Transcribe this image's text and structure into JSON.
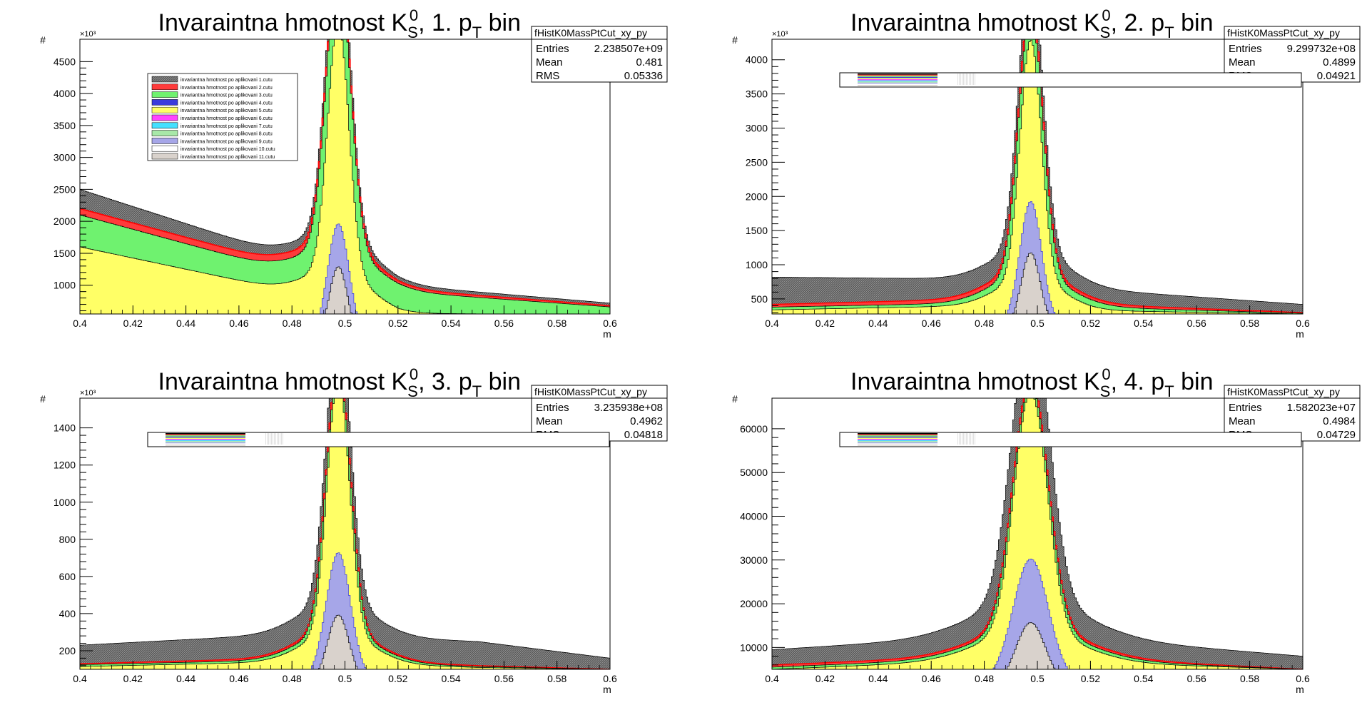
{
  "window": {
    "title": ""
  },
  "colors": {
    "cut1": "#6b6b6b",
    "cut2": "#ff3b3b",
    "cut3": "#6ff26f",
    "cut4": "#3a3adb",
    "cut5": "#ffff66",
    "cut6": "#ff44ff",
    "cut7": "#44e0ff",
    "cut8": "#a8e8a8",
    "cut9": "#a6a6e8",
    "cut10": "#ffffff",
    "cut11": "#d9d2cc"
  },
  "chart_data": [
    {
      "type": "area",
      "title_main": "Invaraintna hmotnost K",
      "title_sub": "S",
      "title_sup": "0",
      "title_rest": ", 1. p",
      "title_pt_sub": "T",
      "title_tail": " bin",
      "xlabel": "m",
      "ylabel": "#",
      "y_multiplier": "×10³",
      "xlim": [
        0.4,
        0.6
      ],
      "ylim": [
        550,
        4850
      ],
      "yticks": [
        "1000",
        "1500",
        "2000",
        "2500",
        "3000",
        "3500",
        "4000",
        "4500"
      ],
      "ytick_values": [
        1000,
        1500,
        2000,
        2500,
        3000,
        3500,
        4000,
        4500
      ],
      "xticks": [
        "0.4",
        "0.42",
        "0.44",
        "0.46",
        "0.48",
        "0.5",
        "0.52",
        "0.54",
        "0.56",
        "0.58",
        "0.6"
      ],
      "stats": {
        "name": "fHistK0MassPtCut_xy_py",
        "entries_label": "Entries",
        "entries": "2.238507e+09",
        "mean_label": "Mean",
        "mean": "0.481",
        "rms_label": "RMS",
        "rms": "0.05336"
      },
      "legend_entries": [
        "invariantna hmotnost po aplikovani 1.cutu",
        "invariantna hmotnost po aplikovani 2.cutu",
        "invariantna hmotnost po aplikovani 3.cutu",
        "invariantna hmotnost po aplikovani 4.cutu",
        "invariantna hmotnost po aplikovani 5.cutu",
        "invariantna hmotnost po aplikovani 6.cutu",
        "invariantna hmotnost po aplikovani 7.cutu",
        "invariantna hmotnost po aplikovani 8.cutu",
        "invariantna hmotnost po aplikovani 9.cutu",
        "invariantna hmotnost po aplikovani 10.cutu",
        "invariantna hmotnost po aplikovani 11.cutu"
      ],
      "series": [
        {
          "name": "invariantna hmotnost po aplikovani 1.cutu",
          "color": "#6b6b6b",
          "peak_x": 0.4975,
          "peak_y": 4700,
          "sigma": 0.0045,
          "bg": [
            [
              0.4,
              2500
            ],
            [
              0.48,
              1430
            ],
            [
              0.52,
              1000
            ],
            [
              0.6,
              720
            ]
          ]
        },
        {
          "name": "invariantna hmotnost po aplikovani 2.cutu",
          "color": "#ff3b3b",
          "peak_x": 0.4975,
          "peak_y": 4480,
          "sigma": 0.0045,
          "bg": [
            [
              0.4,
              2200
            ],
            [
              0.48,
              1300
            ],
            [
              0.52,
              940
            ],
            [
              0.6,
              680
            ]
          ]
        },
        {
          "name": "invariantna hmotnost po aplikovani 3.cutu",
          "color": "#6ff26f",
          "peak_x": 0.4975,
          "peak_y": 4400,
          "sigma": 0.0045,
          "bg": [
            [
              0.4,
              2100
            ],
            [
              0.48,
              1200
            ],
            [
              0.52,
              900
            ],
            [
              0.6,
              660
            ]
          ]
        },
        {
          "name": "invariantna hmotnost po aplikovani 5.cutu",
          "color": "#ffff66",
          "peak_x": 0.4975,
          "peak_y": 3900,
          "sigma": 0.004,
          "bg": [
            [
              0.4,
              1600
            ],
            [
              0.48,
              900
            ],
            [
              0.52,
              560
            ],
            [
              0.6,
              540
            ]
          ]
        },
        {
          "name": "invariantna hmotnost po aplikovani 9.cutu",
          "color": "#a6a6e8",
          "peak_x": 0.4975,
          "peak_y": 1750,
          "sigma": 0.004,
          "bg": [
            [
              0.4,
              0
            ],
            [
              0.6,
              0
            ]
          ]
        },
        {
          "name": "invariantna hmotnost po aplikovani 11.cutu",
          "color": "#d9d2cc",
          "peak_x": 0.4975,
          "peak_y": 1150,
          "sigma": 0.0035,
          "bg": [
            [
              0.4,
              0
            ],
            [
              0.6,
              0
            ]
          ]
        }
      ]
    },
    {
      "type": "area",
      "title_main": "Invaraintna hmotnost K",
      "title_sub": "S",
      "title_sup": "0",
      "title_rest": ", 2. p",
      "title_pt_sub": "T",
      "title_tail": " bin",
      "xlabel": "m",
      "ylabel": "#",
      "y_multiplier": "×10³",
      "xlim": [
        0.4,
        0.6
      ],
      "ylim": [
        280,
        4300
      ],
      "yticks": [
        "500",
        "1000",
        "1500",
        "2000",
        "2500",
        "3000",
        "3500",
        "4000"
      ],
      "ytick_values": [
        500,
        1000,
        1500,
        2000,
        2500,
        3000,
        3500,
        4000
      ],
      "xticks": [
        "0.4",
        "0.42",
        "0.44",
        "0.46",
        "0.48",
        "0.5",
        "0.52",
        "0.54",
        "0.56",
        "0.58",
        "0.6"
      ],
      "stats": {
        "name": "fHistK0MassPtCut_xy_py",
        "entries_label": "Entries",
        "entries": "9.299732e+08",
        "mean_label": "Mean",
        "mean": "0.4899",
        "rms_label": "RMS",
        "rms": "0.04921"
      },
      "series": [
        {
          "name": "invariantna hmotnost po aplikovani 1.cutu",
          "color": "#6b6b6b",
          "peak_x": 0.4975,
          "peak_y": 4100,
          "sigma": 0.0045,
          "bg": [
            [
              0.4,
              820
            ],
            [
              0.48,
              790
            ],
            [
              0.52,
              640
            ],
            [
              0.6,
              420
            ]
          ]
        },
        {
          "name": "invariantna hmotnost po aplikovani 2.cutu",
          "color": "#ff3b3b",
          "peak_x": 0.4975,
          "peak_y": 3900,
          "sigma": 0.0045,
          "bg": [
            [
              0.4,
              420
            ],
            [
              0.48,
              500
            ],
            [
              0.52,
              420
            ],
            [
              0.6,
              300
            ]
          ]
        },
        {
          "name": "invariantna hmotnost po aplikovani 3.cutu",
          "color": "#6ff26f",
          "peak_x": 0.4975,
          "peak_y": 3800,
          "sigma": 0.0045,
          "bg": [
            [
              0.4,
              380
            ],
            [
              0.48,
              440
            ],
            [
              0.52,
              380
            ],
            [
              0.6,
              290
            ]
          ]
        },
        {
          "name": "invariantna hmotnost po aplikovani 5.cutu",
          "color": "#ffff66",
          "peak_x": 0.4975,
          "peak_y": 3500,
          "sigma": 0.004,
          "bg": [
            [
              0.4,
              340
            ],
            [
              0.48,
              400
            ],
            [
              0.52,
              330
            ],
            [
              0.6,
              280
            ]
          ]
        },
        {
          "name": "invariantna hmotnost po aplikovani 9.cutu",
          "color": "#a6a6e8",
          "peak_x": 0.4975,
          "peak_y": 1720,
          "sigma": 0.004,
          "bg": [
            [
              0.4,
              0
            ],
            [
              0.6,
              0
            ]
          ]
        },
        {
          "name": "invariantna hmotnost po aplikovani 11.cutu",
          "color": "#d9d2cc",
          "peak_x": 0.4975,
          "peak_y": 1050,
          "sigma": 0.0035,
          "bg": [
            [
              0.4,
              0
            ],
            [
              0.6,
              0
            ]
          ]
        }
      ]
    },
    {
      "type": "area",
      "title_main": "Invaraintna hmotnost K",
      "title_sub": "S",
      "title_sup": "0",
      "title_rest": ", 3. p",
      "title_pt_sub": "T",
      "title_tail": " bin",
      "xlabel": "m",
      "ylabel": "#",
      "y_multiplier": "×10³",
      "xlim": [
        0.4,
        0.6
      ],
      "ylim": [
        100,
        1560
      ],
      "yticks": [
        "200",
        "400",
        "600",
        "800",
        "1000",
        "1200",
        "1400"
      ],
      "ytick_values": [
        200,
        400,
        600,
        800,
        1000,
        1200,
        1400
      ],
      "xticks": [
        "0.4",
        "0.42",
        "0.44",
        "0.46",
        "0.48",
        "0.5",
        "0.52",
        "0.54",
        "0.56",
        "0.58",
        "0.6"
      ],
      "stats": {
        "name": "fHistK0MassPtCut_xy_py",
        "entries_label": "Entries",
        "entries": "3.235938e+08",
        "mean_label": "Mean",
        "mean": "0.4962",
        "rms_label": "RMS",
        "rms": "0.04818"
      },
      "series": [
        {
          "name": "invariantna hmotnost po aplikovani 1.cutu",
          "color": "#6b6b6b",
          "peak_x": 0.4975,
          "peak_y": 1510,
          "sigma": 0.0045,
          "bg": [
            [
              0.4,
              230
            ],
            [
              0.48,
              290
            ],
            [
              0.55,
              250
            ],
            [
              0.6,
              160
            ]
          ]
        },
        {
          "name": "invariantna hmotnost po aplikovani 2.cutu",
          "color": "#ff3b3b",
          "peak_x": 0.4975,
          "peak_y": 1420,
          "sigma": 0.0045,
          "bg": [
            [
              0.4,
              130
            ],
            [
              0.48,
              160
            ],
            [
              0.55,
              120
            ],
            [
              0.6,
              100
            ]
          ]
        },
        {
          "name": "invariantna hmotnost po aplikovani 3.cutu",
          "color": "#6ff26f",
          "peak_x": 0.4975,
          "peak_y": 1390,
          "sigma": 0.0045,
          "bg": [
            [
              0.4,
              125
            ],
            [
              0.48,
              150
            ],
            [
              0.55,
              115
            ],
            [
              0.6,
              100
            ]
          ]
        },
        {
          "name": "invariantna hmotnost po aplikovani 5.cutu",
          "color": "#ffff66",
          "peak_x": 0.4975,
          "peak_y": 1360,
          "sigma": 0.0042,
          "bg": [
            [
              0.4,
              115
            ],
            [
              0.48,
              140
            ],
            [
              0.55,
              110
            ],
            [
              0.6,
              100
            ]
          ]
        },
        {
          "name": "invariantna hmotnost po aplikovani 9.cutu",
          "color": "#a6a6e8",
          "peak_x": 0.4975,
          "peak_y": 650,
          "sigma": 0.0045,
          "bg": [
            [
              0.4,
              0
            ],
            [
              0.6,
              0
            ]
          ]
        },
        {
          "name": "invariantna hmotnost po aplikovani 11.cutu",
          "color": "#d9d2cc",
          "peak_x": 0.4975,
          "peak_y": 350,
          "sigma": 0.004,
          "bg": [
            [
              0.4,
              0
            ],
            [
              0.6,
              0
            ]
          ]
        }
      ]
    },
    {
      "type": "area",
      "title_main": "Invaraintna hmotnost K",
      "title_sub": "S",
      "title_sup": "0",
      "title_rest": ", 4. p",
      "title_pt_sub": "T",
      "title_tail": " bin",
      "xlabel": "m",
      "ylabel": "#",
      "y_multiplier": "",
      "xlim": [
        0.4,
        0.6
      ],
      "ylim": [
        5000,
        67000
      ],
      "yticks": [
        "10000",
        "20000",
        "30000",
        "40000",
        "50000",
        "60000"
      ],
      "ytick_values": [
        10000,
        20000,
        30000,
        40000,
        50000,
        60000
      ],
      "xticks": [
        "0.4",
        "0.42",
        "0.44",
        "0.46",
        "0.48",
        "0.5",
        "0.52",
        "0.54",
        "0.56",
        "0.58",
        "0.6"
      ],
      "stats": {
        "name": "fHistK0MassPtCut_xy_py",
        "entries_label": "Entries",
        "entries": "1.582023e+07",
        "mean_label": "Mean",
        "mean": "0.4984",
        "rms_label": "RMS",
        "rms": "0.04729"
      },
      "series": [
        {
          "name": "invariantna hmotnost po aplikovani 1.cutu",
          "color": "#6b6b6b",
          "peak_x": 0.4975,
          "peak_y": 65000,
          "sigma": 0.007,
          "bg": [
            [
              0.4,
              9500
            ],
            [
              0.48,
              12500
            ],
            [
              0.52,
              12000
            ],
            [
              0.6,
              8000
            ]
          ]
        },
        {
          "name": "invariantna hmotnost po aplikovani 2.cutu",
          "color": "#ff3b3b",
          "peak_x": 0.4975,
          "peak_y": 57000,
          "sigma": 0.0065,
          "bg": [
            [
              0.4,
              6000
            ],
            [
              0.48,
              8000
            ],
            [
              0.52,
              7500
            ],
            [
              0.6,
              5000
            ]
          ]
        },
        {
          "name": "invariantna hmotnost po aplikovani 3.cutu",
          "color": "#6ff26f",
          "peak_x": 0.4975,
          "peak_y": 56000,
          "sigma": 0.0065,
          "bg": [
            [
              0.4,
              5500
            ],
            [
              0.48,
              7500
            ],
            [
              0.52,
              7000
            ],
            [
              0.6,
              5000
            ]
          ]
        },
        {
          "name": "invariantna hmotnost po aplikovani 5.cutu",
          "color": "#ffff66",
          "peak_x": 0.4975,
          "peak_y": 55000,
          "sigma": 0.0062,
          "bg": [
            [
              0.4,
              5000
            ],
            [
              0.48,
              7000
            ],
            [
              0.52,
              6500
            ],
            [
              0.6,
              5000
            ]
          ]
        },
        {
          "name": "invariantna hmotnost po aplikovani 9.cutu",
          "color": "#a6a6e8",
          "peak_x": 0.4975,
          "peak_y": 27000,
          "sigma": 0.0065,
          "bg": [
            [
              0.4,
              0
            ],
            [
              0.6,
              0
            ]
          ]
        },
        {
          "name": "invariantna hmotnost po aplikovani 11.cutu",
          "color": "#d9d2cc",
          "peak_x": 0.4975,
          "peak_y": 14000,
          "sigma": 0.0055,
          "bg": [
            [
              0.4,
              0
            ],
            [
              0.6,
              0
            ]
          ]
        }
      ]
    }
  ]
}
